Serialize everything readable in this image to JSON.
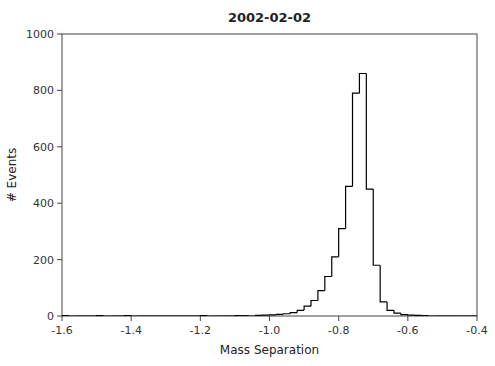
{
  "chart_data": {
    "type": "histogram",
    "title": "2002-02-02",
    "xlabel": "Mass Separation",
    "ylabel": "# Events",
    "color": "black",
    "grid": false,
    "xlim": [
      -1.6,
      -0.4
    ],
    "xticks": [
      -1.6,
      -1.4,
      -1.2,
      {
        "value": -1.0,
        "label": "-1.0"
      },
      -0.8,
      -0.6,
      -0.4
    ],
    "ylim": [
      0,
      1000
    ],
    "yticks": [
      0,
      200,
      400,
      600,
      800,
      1000
    ],
    "bins": [
      -1.6,
      -1.58,
      -1.56,
      -1.54,
      -1.52,
      -1.5,
      -1.48,
      -1.46,
      -1.44,
      -1.42,
      -1.4,
      -1.38,
      -1.36,
      -1.34,
      -1.32,
      -1.3,
      -1.28,
      -1.26,
      -1.24,
      -1.22,
      -1.2,
      -1.18,
      -1.16,
      -1.14,
      -1.12,
      -1.1,
      -1.08,
      -1.06,
      -1.04,
      -1.02,
      -1.0,
      -0.98,
      -0.96,
      -0.94,
      -0.92,
      -0.9,
      -0.88,
      -0.86,
      -0.84,
      -0.82,
      -0.8,
      -0.78,
      -0.76,
      -0.74,
      -0.72,
      -0.7,
      -0.68,
      -0.66,
      -0.64,
      -0.62,
      -0.6,
      -0.58,
      -0.56,
      -0.54,
      -0.52,
      -0.5,
      -0.48,
      -0.46,
      -0.44,
      -0.42,
      -0.4
    ],
    "values": [
      1,
      0,
      0,
      0,
      0,
      1,
      0,
      0,
      0,
      1,
      0,
      0,
      0,
      0,
      0,
      0,
      0,
      0,
      0,
      0,
      1,
      0,
      0,
      0,
      0,
      1,
      1,
      0,
      2,
      3,
      4,
      6,
      8,
      12,
      20,
      35,
      55,
      90,
      140,
      210,
      310,
      460,
      790,
      860,
      450,
      180,
      50,
      20,
      10,
      5,
      3,
      2,
      1,
      0,
      0,
      0,
      0,
      0,
      0,
      0
    ]
  }
}
